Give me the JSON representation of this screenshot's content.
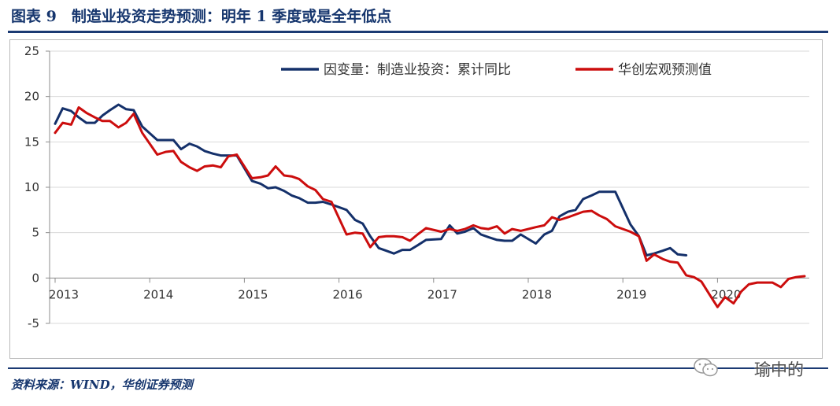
{
  "header": {
    "title": "图表 9　制造业投资走势预测：明年 1 季度或是全年低点"
  },
  "footer": {
    "source": "资料来源：WIND，华创证券预测"
  },
  "watermark": {
    "text": "瑜中的",
    "icon": "wechat-icon"
  },
  "colors": {
    "actual": "#14306a",
    "forecast": "#cc0d0d",
    "title": "#16366e",
    "grid": "#d9d9d9"
  },
  "chart_data": {
    "type": "line",
    "title": "",
    "xlabel": "",
    "ylabel": "",
    "ylim": [
      -5,
      25
    ],
    "yticks": [
      -5,
      0,
      5,
      10,
      15,
      20,
      25
    ],
    "ytick_labels": [
      "-5",
      "0",
      "5",
      "10",
      "15",
      "20",
      "25"
    ],
    "xlim": [
      2013.0,
      2020.9
    ],
    "xticks": [
      2013,
      2014,
      2015,
      2016,
      2017,
      2018,
      2019,
      2020
    ],
    "xtick_labels": [
      "2013",
      "2014",
      "2015",
      "2016",
      "2017",
      "2018",
      "2019",
      "2020"
    ],
    "grid": "horizontal",
    "legend_position": "top",
    "series": [
      {
        "name": "因变量：制造业投资：累计同比",
        "color": "#14306a",
        "x": [
          2013.0,
          2013.08,
          2013.17,
          2013.25,
          2013.33,
          2013.42,
          2013.5,
          2013.58,
          2013.67,
          2013.75,
          2013.83,
          2013.92,
          2014.08,
          2014.17,
          2014.25,
          2014.33,
          2014.42,
          2014.5,
          2014.58,
          2014.67,
          2014.75,
          2014.83,
          2014.92,
          2015.08,
          2015.17,
          2015.25,
          2015.33,
          2015.42,
          2015.5,
          2015.58,
          2015.67,
          2015.75,
          2015.83,
          2015.92,
          2016.08,
          2016.17,
          2016.25,
          2016.33,
          2016.42,
          2016.5,
          2016.58,
          2016.67,
          2016.75,
          2016.83,
          2016.92,
          2017.08,
          2017.17,
          2017.25,
          2017.33,
          2017.42,
          2017.5,
          2017.58,
          2017.67,
          2017.75,
          2017.83,
          2017.92,
          2018.08,
          2018.17,
          2018.25,
          2018.33,
          2018.42,
          2018.5,
          2018.58,
          2018.67,
          2018.75,
          2018.83,
          2018.92,
          2019.08,
          2019.17,
          2019.25,
          2019.33,
          2019.42,
          2019.5,
          2019.58,
          2019.67
        ],
        "values": [
          17.0,
          18.7,
          18.4,
          17.7,
          17.1,
          17.1,
          17.9,
          18.5,
          19.1,
          18.6,
          18.5,
          16.7,
          15.2,
          15.2,
          15.2,
          14.2,
          14.8,
          14.5,
          14.0,
          13.7,
          13.5,
          13.5,
          13.5,
          10.7,
          10.4,
          9.9,
          10.0,
          9.6,
          9.1,
          8.8,
          8.3,
          8.3,
          8.4,
          8.1,
          7.5,
          6.4,
          6.0,
          4.6,
          3.3,
          3.0,
          2.7,
          3.1,
          3.1,
          3.6,
          4.2,
          4.3,
          5.8,
          4.9,
          5.1,
          5.5,
          4.8,
          4.5,
          4.2,
          4.1,
          4.1,
          4.8,
          3.8,
          4.8,
          5.2,
          6.8,
          7.3,
          7.5,
          8.7,
          9.1,
          9.5,
          9.5,
          9.5,
          5.9,
          4.6,
          2.5,
          2.7,
          3.0,
          3.3,
          2.6,
          2.5
        ]
      },
      {
        "name": "华创宏观预测值",
        "color": "#cc0d0d",
        "x": [
          2013.0,
          2013.08,
          2013.17,
          2013.25,
          2013.33,
          2013.42,
          2013.5,
          2013.58,
          2013.67,
          2013.75,
          2013.83,
          2013.92,
          2014.08,
          2014.17,
          2014.25,
          2014.33,
          2014.42,
          2014.5,
          2014.58,
          2014.67,
          2014.75,
          2014.83,
          2014.92,
          2015.08,
          2015.17,
          2015.25,
          2015.33,
          2015.42,
          2015.5,
          2015.58,
          2015.67,
          2015.75,
          2015.83,
          2015.92,
          2016.08,
          2016.17,
          2016.25,
          2016.33,
          2016.42,
          2016.5,
          2016.58,
          2016.67,
          2016.75,
          2016.83,
          2016.92,
          2017.08,
          2017.17,
          2017.25,
          2017.33,
          2017.42,
          2017.5,
          2017.58,
          2017.67,
          2017.75,
          2017.83,
          2017.92,
          2018.08,
          2018.17,
          2018.25,
          2018.33,
          2018.42,
          2018.5,
          2018.58,
          2018.67,
          2018.75,
          2018.83,
          2018.92,
          2019.08,
          2019.17,
          2019.25,
          2019.33,
          2019.42,
          2019.5,
          2019.58,
          2019.67,
          2019.75,
          2019.83,
          2019.92,
          2020.0,
          2020.08,
          2020.17,
          2020.25,
          2020.33,
          2020.42,
          2020.5,
          2020.58,
          2020.67,
          2020.75,
          2020.83,
          2020.92
        ],
        "values": [
          16.0,
          17.1,
          16.9,
          18.8,
          18.2,
          17.7,
          17.3,
          17.3,
          16.6,
          17.1,
          18.1,
          16.0,
          13.6,
          13.9,
          14.0,
          12.8,
          12.2,
          11.8,
          12.3,
          12.4,
          12.2,
          13.4,
          13.6,
          11.0,
          11.1,
          11.3,
          12.3,
          11.3,
          11.2,
          10.9,
          10.1,
          9.7,
          8.7,
          8.4,
          4.8,
          5.0,
          4.9,
          3.4,
          4.5,
          4.6,
          4.6,
          4.5,
          4.1,
          4.8,
          5.5,
          5.1,
          5.4,
          5.2,
          5.4,
          5.8,
          5.5,
          5.4,
          5.7,
          4.9,
          5.4,
          5.2,
          5.6,
          5.8,
          6.7,
          6.4,
          6.7,
          7.0,
          7.3,
          7.4,
          6.9,
          6.5,
          5.7,
          5.1,
          4.6,
          1.9,
          2.6,
          2.1,
          1.8,
          1.7,
          0.3,
          0.1,
          -0.4,
          -1.9,
          -3.2,
          -2.1,
          -2.8,
          -1.5,
          -0.7,
          -0.5,
          -0.5,
          -0.5,
          -1.0,
          -0.1,
          0.1,
          0.2
        ]
      }
    ]
  }
}
